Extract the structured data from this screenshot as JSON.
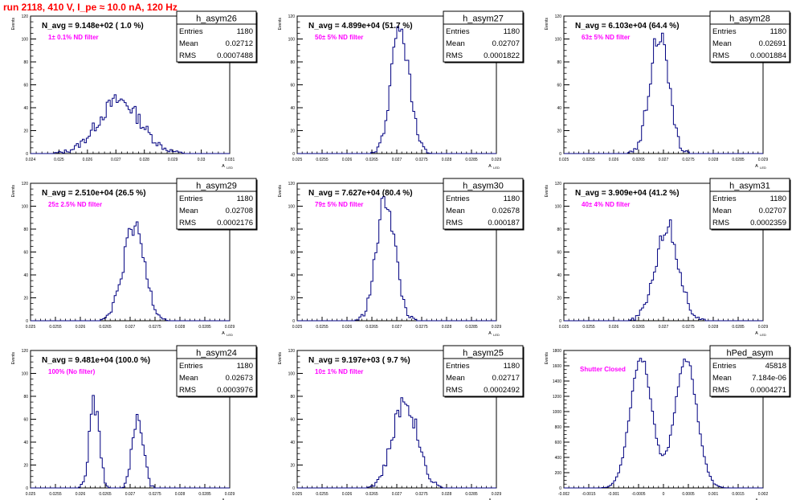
{
  "run_title": "run 2118,   410 V, I_pe ≈ 10.0 nA, 120 Hz",
  "stats_labels": {
    "entries": "Entries",
    "mean": "Mean",
    "rms": "RMS"
  },
  "ylabel": "Events",
  "xlabel": "A",
  "xlabel_sub": "LED",
  "colors": {
    "hist": "#000080",
    "annotation": "#ff00ff",
    "title": "#ff0000",
    "frame": "#000000"
  },
  "chart_data": [
    {
      "type": "bar",
      "name": "h_asym26",
      "nav": "N_avg = 9.148e+02 ( 1.0 %)",
      "filter": "1± 0.1% ND filter",
      "entries": "1180",
      "mean": "0.02712",
      "rms": "0.0007488",
      "xlim": [
        0.024,
        0.031
      ],
      "ylim": [
        0,
        120
      ],
      "xticks": [
        0.024,
        0.025,
        0.026,
        0.027,
        0.028,
        0.029,
        0.03,
        0.031
      ],
      "xticklabels": [
        "0.024",
        "0.025",
        "0.026",
        "0.027",
        "0.028",
        "0.029",
        "0.03",
        "0.031"
      ],
      "yticks": [
        0,
        20,
        40,
        60,
        80,
        100,
        120
      ],
      "yticklabels": [
        "0",
        "20",
        "40",
        "60",
        "80",
        "100",
        "120"
      ],
      "peaks": [
        {
          "mu": 0.02712,
          "sigma": 0.0007488,
          "h": 46
        }
      ]
    },
    {
      "type": "bar",
      "name": "h_asym27",
      "nav": "N_avg = 4.899e+04 (51.7 %)",
      "filter": "50± 5% ND filter",
      "entries": "1180",
      "mean": "0.02707",
      "rms": "0.0001822",
      "xlim": [
        0.025,
        0.029
      ],
      "ylim": [
        0,
        120
      ],
      "xticks": [
        0.025,
        0.0255,
        0.026,
        0.0265,
        0.027,
        0.0275,
        0.028,
        0.0285,
        0.029
      ],
      "xticklabels": [
        "0.025",
        "0.0255",
        "0.026",
        "0.0265",
        "0.027",
        "0.0275",
        "0.028",
        "0.0285",
        "0.029"
      ],
      "yticks": [
        0,
        20,
        40,
        60,
        80,
        100,
        120
      ],
      "yticklabels": [
        "0",
        "20",
        "40",
        "60",
        "80",
        "100",
        "120"
      ],
      "peaks": [
        {
          "mu": 0.02707,
          "sigma": 0.0001822,
          "h": 108
        }
      ]
    },
    {
      "type": "bar",
      "name": "h_asym28",
      "nav": "N_avg = 6.103e+04 (64.4 %)",
      "filter": "63± 5% ND filter",
      "entries": "1180",
      "mean": "0.02691",
      "rms": "0.0001884",
      "xlim": [
        0.025,
        0.029
      ],
      "ylim": [
        0,
        120
      ],
      "xticks": [
        0.025,
        0.0255,
        0.026,
        0.0265,
        0.027,
        0.0275,
        0.028,
        0.0285,
        0.029
      ],
      "xticklabels": [
        "0.025",
        "0.0255",
        "0.026",
        "0.0265",
        "0.027",
        "0.0275",
        "0.028",
        "0.0285",
        "0.029"
      ],
      "yticks": [
        0,
        20,
        40,
        60,
        80,
        100,
        120
      ],
      "yticklabels": [
        "0",
        "20",
        "40",
        "60",
        "80",
        "100",
        "120"
      ],
      "peaks": [
        {
          "mu": 0.02691,
          "sigma": 0.0001884,
          "h": 104
        }
      ]
    },
    {
      "type": "bar",
      "name": "h_asym29",
      "nav": "N_avg = 2.510e+04 (26.5 %)",
      "filter": "25± 2.5% ND filter",
      "entries": "1180",
      "mean": "0.02708",
      "rms": "0.0002176",
      "xlim": [
        0.025,
        0.029
      ],
      "ylim": [
        0,
        120
      ],
      "xticks": [
        0.025,
        0.0255,
        0.026,
        0.0265,
        0.027,
        0.0275,
        0.028,
        0.0285,
        0.029
      ],
      "xticklabels": [
        "0.025",
        "0.0255",
        "0.026",
        "0.0265",
        "0.027",
        "0.0275",
        "0.028",
        "0.0285",
        "0.029"
      ],
      "yticks": [
        0,
        20,
        40,
        60,
        80,
        100,
        120
      ],
      "yticklabels": [
        "0",
        "20",
        "40",
        "60",
        "80",
        "100",
        "120"
      ],
      "peaks": [
        {
          "mu": 0.02708,
          "sigma": 0.0002176,
          "h": 80
        }
      ]
    },
    {
      "type": "bar",
      "name": "h_asym30",
      "nav": "N_avg = 7.627e+04 (80.4 %)",
      "filter": "79± 5% ND filter",
      "entries": "1180",
      "mean": "0.02678",
      "rms": "0.000187",
      "xlim": [
        0.025,
        0.029
      ],
      "ylim": [
        0,
        120
      ],
      "xticks": [
        0.025,
        0.0255,
        0.026,
        0.0265,
        0.027,
        0.0275,
        0.028,
        0.0285,
        0.029
      ],
      "xticklabels": [
        "0.025",
        "0.0255",
        "0.026",
        "0.0265",
        "0.027",
        "0.0275",
        "0.028",
        "0.0285",
        "0.029"
      ],
      "yticks": [
        0,
        20,
        40,
        60,
        80,
        100,
        120
      ],
      "yticklabels": [
        "0",
        "20",
        "40",
        "60",
        "80",
        "100",
        "120"
      ],
      "peaks": [
        {
          "mu": 0.02678,
          "sigma": 0.000187,
          "h": 106
        }
      ]
    },
    {
      "type": "bar",
      "name": "h_asym31",
      "nav": "N_avg = 3.909e+04 (41.2 %)",
      "filter": "40± 4% ND filter",
      "entries": "1180",
      "mean": "0.02707",
      "rms": "0.0002359",
      "xlim": [
        0.025,
        0.029
      ],
      "ylim": [
        0,
        120
      ],
      "xticks": [
        0.025,
        0.0255,
        0.026,
        0.0265,
        0.027,
        0.0275,
        0.028,
        0.0285,
        0.029
      ],
      "xticklabels": [
        "0.025",
        "0.0255",
        "0.026",
        "0.0265",
        "0.027",
        "0.0275",
        "0.028",
        "0.0285",
        "0.029"
      ],
      "yticks": [
        0,
        20,
        40,
        60,
        80,
        100,
        120
      ],
      "yticklabels": [
        "0",
        "20",
        "40",
        "60",
        "80",
        "100",
        "120"
      ],
      "peaks": [
        {
          "mu": 0.02707,
          "sigma": 0.0002359,
          "h": 82
        }
      ]
    },
    {
      "type": "bar",
      "name": "h_asym24",
      "nav": "N_avg = 9.481e+04 (100.0 %)",
      "filter": "100% (No filter)",
      "entries": "1180",
      "mean": "0.02673",
      "rms": "0.0003976",
      "xlim": [
        0.025,
        0.029
      ],
      "ylim": [
        0,
        120
      ],
      "xticks": [
        0.025,
        0.0255,
        0.026,
        0.0265,
        0.027,
        0.0275,
        0.028,
        0.0285,
        0.029
      ],
      "xticklabels": [
        "0.025",
        "0.0255",
        "0.026",
        "0.0265",
        "0.027",
        "0.0275",
        "0.028",
        "0.0285",
        "0.029"
      ],
      "yticks": [
        0,
        20,
        40,
        60,
        80,
        100,
        120
      ],
      "yticklabels": [
        "0",
        "20",
        "40",
        "60",
        "80",
        "100",
        "120"
      ],
      "peaks": [
        {
          "mu": 0.02628,
          "sigma": 0.0001,
          "h": 74
        },
        {
          "mu": 0.02715,
          "sigma": 0.00011,
          "h": 64
        }
      ]
    },
    {
      "type": "bar",
      "name": "h_asym25",
      "nav": "N_avg = 9.197e+03 ( 9.7 %)",
      "filter": "10± 1% ND filter",
      "entries": "1180",
      "mean": "0.02717",
      "rms": "0.0002492",
      "xlim": [
        0.025,
        0.029
      ],
      "ylim": [
        0,
        120
      ],
      "xticks": [
        0.025,
        0.0255,
        0.026,
        0.0265,
        0.027,
        0.0275,
        0.028,
        0.0285,
        0.029
      ],
      "xticklabels": [
        "0.025",
        "0.0255",
        "0.026",
        "0.0265",
        "0.027",
        "0.0275",
        "0.028",
        "0.0285",
        "0.029"
      ],
      "yticks": [
        0,
        20,
        40,
        60,
        80,
        100,
        120
      ],
      "yticklabels": [
        "0",
        "20",
        "40",
        "60",
        "80",
        "100",
        "120"
      ],
      "peaks": [
        {
          "mu": 0.02717,
          "sigma": 0.0002492,
          "h": 76
        }
      ]
    },
    {
      "type": "bar",
      "name": "hPed_asym",
      "nav": "",
      "filter": "Shutter Closed",
      "entries": "45818",
      "mean": "7.184e-06",
      "rms": "0.0004271",
      "xlim": [
        -0.002,
        0.002
      ],
      "ylim": [
        0,
        1800
      ],
      "xticks": [
        -0.002,
        -0.0015,
        -0.001,
        -0.0005,
        0,
        0.0005,
        0.001,
        0.0015,
        0.002
      ],
      "xticklabels": [
        "-0.002",
        "-0.0015",
        "-0.001",
        "-0.0005",
        "0",
        "0.0005",
        "0.001",
        "0.0015",
        "0.002"
      ],
      "yticks": [
        0,
        200,
        400,
        600,
        800,
        1000,
        1200,
        1400,
        1600,
        1800
      ],
      "yticklabels": [
        "0",
        "200",
        "400",
        "600",
        "800",
        "1000",
        "1200",
        "1400",
        "1600",
        "1800"
      ],
      "peaks": [
        {
          "mu": -0.00045,
          "sigma": 0.00022,
          "h": 1700
        },
        {
          "mu": 0.00045,
          "sigma": 0.00022,
          "h": 1700
        }
      ]
    }
  ]
}
